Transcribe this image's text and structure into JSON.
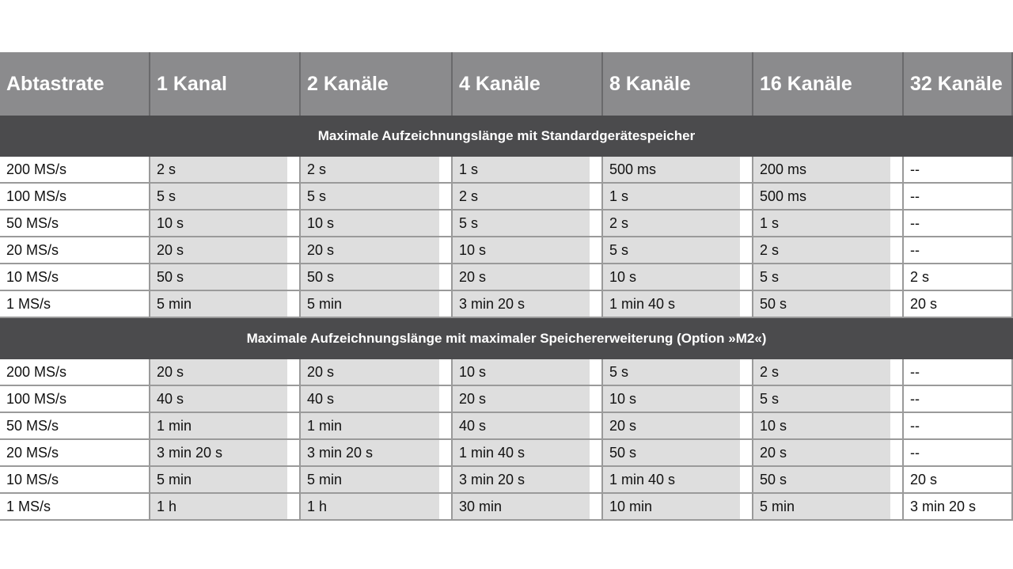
{
  "table": {
    "header": [
      "Abtastrate",
      "1 Kanal",
      "2 Kanäle",
      "4 Kanäle",
      "8 Kanäle",
      "16 Kanäle",
      "32 Kanäle"
    ],
    "sections": [
      {
        "title": "Maximale Aufzeichnungslänge mit Standardgerätespeicher",
        "rows": [
          [
            "200 MS/s",
            "2 s",
            "2 s",
            "1 s",
            "500 ms",
            "200 ms",
            "--"
          ],
          [
            "100 MS/s",
            "5 s",
            "5 s",
            "2 s",
            "1 s",
            "500 ms",
            "--"
          ],
          [
            "50 MS/s",
            "10 s",
            "10 s",
            "5 s",
            "2 s",
            "1 s",
            "--"
          ],
          [
            "20 MS/s",
            "20 s",
            "20 s",
            "10 s",
            "5 s",
            "2 s",
            "--"
          ],
          [
            "10 MS/s",
            "50 s",
            "50 s",
            "20 s",
            "10 s",
            "5 s",
            "2 s"
          ],
          [
            "1 MS/s",
            "5 min",
            "5 min",
            "3 min 20 s",
            "1 min 40 s",
            "50 s",
            "20 s"
          ]
        ]
      },
      {
        "title": "Maximale Aufzeichnungslänge mit maximaler Speichererweiterung (Option »M2«)",
        "rows": [
          [
            "200 MS/s",
            "20 s",
            "20 s",
            "10 s",
            "5 s",
            "2 s",
            "--"
          ],
          [
            "100 MS/s",
            "40 s",
            "40 s",
            "20 s",
            "10 s",
            "5 s",
            "--"
          ],
          [
            "50 MS/s",
            "1 min",
            "1 min",
            "40 s",
            "20 s",
            "10 s",
            "--"
          ],
          [
            "20 MS/s",
            "3 min 20 s",
            "3 min 20 s",
            "1 min 40 s",
            "50 s",
            "20 s",
            "--"
          ],
          [
            "10 MS/s",
            "5 min",
            "5 min",
            "3 min 20 s",
            "1 min 40 s",
            "50 s",
            "20 s"
          ],
          [
            "1 MS/s",
            "1 h",
            "1 h",
            "30 min",
            "10 min",
            "5 min",
            "3 min 20 s"
          ]
        ]
      }
    ]
  }
}
